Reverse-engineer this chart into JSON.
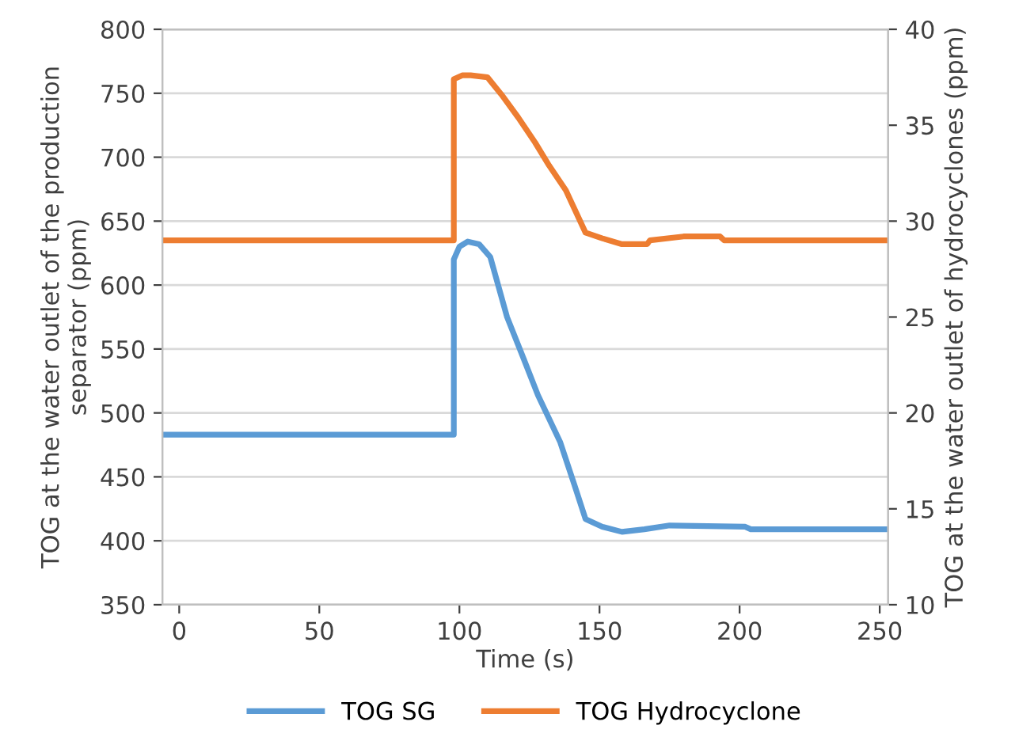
{
  "chart_data": {
    "type": "line",
    "xlabel": "Time (s)",
    "ylabel": "TOG at the water outlet of the production\nseparator (ppm)",
    "y2label": "TOG at the water outlet of hydrocyclones (ppm)",
    "xlim": [
      -6,
      253
    ],
    "xticks": [
      0,
      50,
      100,
      150,
      200,
      250
    ],
    "ylim": [
      350,
      800
    ],
    "yticks": [
      350,
      400,
      450,
      500,
      550,
      600,
      650,
      700,
      750,
      800
    ],
    "y2lim": [
      10,
      40
    ],
    "y2ticks": [
      10,
      15,
      20,
      25,
      30,
      35,
      40
    ],
    "grid": "y",
    "legend": "bottom",
    "marker": "none",
    "line_style": "solid",
    "series": [
      {
        "name": "TOG SG",
        "color": "#5b9bd5",
        "x": [
          -6,
          98,
          98,
          100,
          103,
          107,
          111,
          117,
          123,
          128,
          136,
          141,
          145,
          151,
          158,
          166,
          175,
          202,
          204,
          253
        ],
        "values": [
          483,
          483,
          620,
          630,
          634,
          632,
          622,
          575,
          542,
          514,
          477,
          444,
          417,
          411,
          407,
          409,
          412,
          411,
          409,
          409
        ]
      },
      {
        "name": "TOG Hydrocyclone",
        "color": "#ed7d31",
        "axis": "y2",
        "x": [
          -6,
          98,
          98,
          101,
          104,
          110,
          115,
          121,
          127,
          132,
          138,
          145,
          151,
          158,
          167,
          168,
          180,
          193,
          194.5,
          253
        ],
        "values": [
          29.0,
          29.0,
          37.4,
          37.6,
          37.6,
          37.5,
          36.6,
          35.4,
          34.1,
          32.9,
          31.6,
          29.4,
          29.1,
          28.8,
          28.8,
          29.0,
          29.2,
          29.2,
          29.0,
          29.0
        ]
      }
    ]
  }
}
